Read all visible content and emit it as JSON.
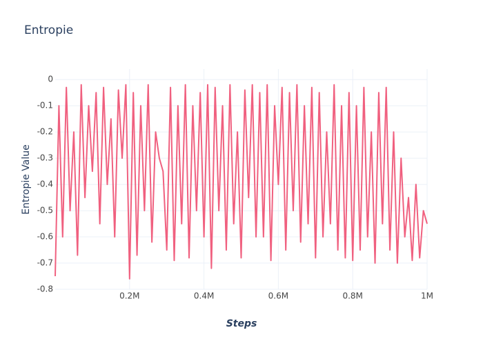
{
  "chart_data": {
    "type": "line",
    "title": "Entropie",
    "x_label": "Steps",
    "y_label": "Entropie Value",
    "x": [
      0,
      10000,
      20000,
      30000,
      40000,
      50000,
      60000,
      70000,
      80000,
      90000,
      100000,
      110000,
      120000,
      130000,
      140000,
      150000,
      160000,
      170000,
      180000,
      190000,
      200000,
      210000,
      220000,
      230000,
      240000,
      250000,
      260000,
      270000,
      280000,
      290000,
      300000,
      310000,
      320000,
      330000,
      340000,
      350000,
      360000,
      370000,
      380000,
      390000,
      400000,
      410000,
      420000,
      430000,
      440000,
      450000,
      460000,
      470000,
      480000,
      490000,
      500000,
      510000,
      520000,
      530000,
      540000,
      550000,
      560000,
      570000,
      580000,
      590000,
      600000,
      610000,
      620000,
      630000,
      640000,
      650000,
      660000,
      670000,
      680000,
      690000,
      700000,
      710000,
      720000,
      730000,
      740000,
      750000,
      760000,
      770000,
      780000,
      790000,
      800000,
      810000,
      820000,
      830000,
      840000,
      850000,
      860000,
      870000,
      880000,
      890000,
      900000,
      910000,
      920000,
      930000,
      940000,
      950000,
      960000,
      970000,
      980000,
      990000,
      1000000
    ],
    "series": [
      {
        "name": "Entropie",
        "color": "#f0607f",
        "values": [
          -0.75,
          -0.1,
          -0.6,
          -0.03,
          -0.5,
          -0.2,
          -0.67,
          -0.02,
          -0.45,
          -0.1,
          -0.35,
          -0.05,
          -0.55,
          -0.03,
          -0.4,
          -0.15,
          -0.6,
          -0.04,
          -0.3,
          -0.02,
          -0.76,
          -0.05,
          -0.67,
          -0.1,
          -0.5,
          -0.02,
          -0.62,
          -0.2,
          -0.3,
          -0.35,
          -0.65,
          -0.03,
          -0.69,
          -0.1,
          -0.55,
          -0.02,
          -0.68,
          -0.1,
          -0.5,
          -0.05,
          -0.6,
          -0.02,
          -0.72,
          -0.03,
          -0.5,
          -0.1,
          -0.65,
          -0.02,
          -0.55,
          -0.2,
          -0.68,
          -0.04,
          -0.45,
          -0.02,
          -0.6,
          -0.05,
          -0.6,
          -0.02,
          -0.69,
          -0.1,
          -0.4,
          -0.03,
          -0.65,
          -0.05,
          -0.5,
          -0.02,
          -0.62,
          -0.1,
          -0.55,
          -0.03,
          -0.68,
          -0.05,
          -0.6,
          -0.2,
          -0.55,
          -0.02,
          -0.65,
          -0.1,
          -0.68,
          -0.05,
          -0.69,
          -0.1,
          -0.65,
          -0.03,
          -0.6,
          -0.2,
          -0.7,
          -0.05,
          -0.55,
          -0.03,
          -0.65,
          -0.2,
          -0.7,
          -0.3,
          -0.6,
          -0.45,
          -0.69,
          -0.4,
          -0.68,
          -0.5,
          -0.55
        ]
      }
    ],
    "xlim": [
      0,
      1000000
    ],
    "ylim": [
      -0.8,
      0.04
    ],
    "xticks": [
      {
        "value": 200000,
        "label": "0.2M"
      },
      {
        "value": 400000,
        "label": "0.4M"
      },
      {
        "value": 600000,
        "label": "0.6M"
      },
      {
        "value": 800000,
        "label": "0.8M"
      },
      {
        "value": 1000000,
        "label": "1M"
      }
    ],
    "yticks": [
      0,
      -0.1,
      -0.2,
      -0.3,
      -0.4,
      -0.5,
      -0.6,
      -0.7,
      -0.8
    ],
    "grid": true
  }
}
